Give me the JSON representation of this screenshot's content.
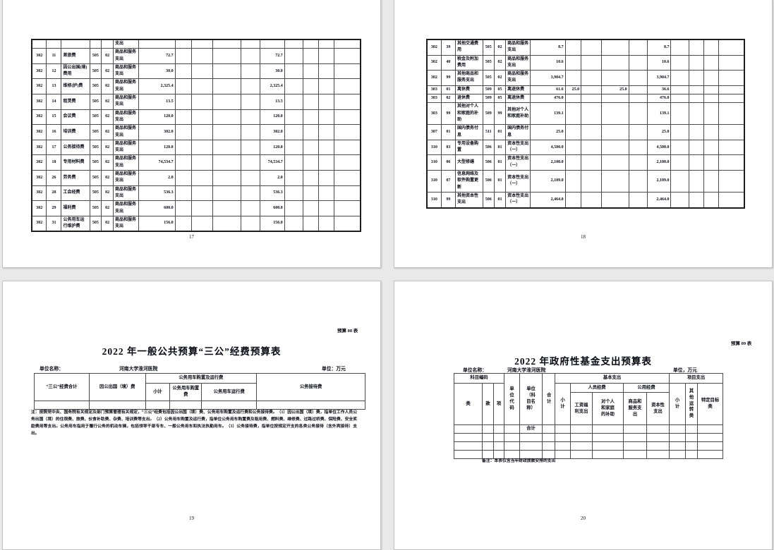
{
  "p17": {
    "page_number": "17",
    "rows": [
      [
        "",
        "",
        "",
        "",
        "",
        "支出",
        "",
        "",
        "",
        "",
        "",
        "",
        "",
        "",
        "",
        ""
      ],
      [
        "302",
        "11",
        "差旅费",
        "505",
        "02",
        "商品和服务支出",
        "72.7",
        "",
        "",
        "",
        "",
        "72.7",
        "",
        "",
        "",
        ""
      ],
      [
        "302",
        "12",
        "因公出国(境)费用",
        "505",
        "02",
        "商品和服务支出",
        "30.0",
        "",
        "",
        "",
        "",
        "30.0",
        "",
        "",
        "",
        ""
      ],
      [
        "302",
        "13",
        "维修(护)费",
        "505",
        "02",
        "商品和服务支出",
        "2,325.4",
        "",
        "",
        "",
        "",
        "2,325.4",
        "",
        "",
        "",
        ""
      ],
      [
        "302",
        "14",
        "租赁费",
        "505",
        "02",
        "商品和服务支出",
        "13.5",
        "",
        "",
        "",
        "",
        "13.5",
        "",
        "",
        "",
        ""
      ],
      [
        "302",
        "15",
        "会议费",
        "505",
        "02",
        "商品和服务支出",
        "120.0",
        "",
        "",
        "",
        "",
        "120.0",
        "",
        "",
        "",
        ""
      ],
      [
        "302",
        "16",
        "培训费",
        "505",
        "02",
        "商品和服务支出",
        "302.0",
        "",
        "",
        "",
        "",
        "302.0",
        "",
        "",
        "",
        ""
      ],
      [
        "302",
        "17",
        "公务接待费",
        "505",
        "02",
        "商品和服务支出",
        "120.0",
        "",
        "",
        "",
        "",
        "120.0",
        "",
        "",
        "",
        ""
      ],
      [
        "302",
        "18",
        "专用材料费",
        "505",
        "02",
        "商品和服务支出",
        "74,534.7",
        "",
        "",
        "",
        "",
        "74,534.7",
        "",
        "",
        "",
        ""
      ],
      [
        "302",
        "26",
        "劳务费",
        "505",
        "02",
        "商品和服务支出",
        "2.0",
        "",
        "",
        "",
        "",
        "2.0",
        "",
        "",
        "",
        ""
      ],
      [
        "302",
        "28",
        "工会经费",
        "505",
        "02",
        "商品和服务支出",
        "536.3",
        "",
        "",
        "",
        "",
        "536.3",
        "",
        "",
        "",
        ""
      ],
      [
        "302",
        "29",
        "福利费",
        "505",
        "02",
        "商品和服务支出",
        "600.0",
        "",
        "",
        "",
        "",
        "600.0",
        "",
        "",
        "",
        ""
      ],
      [
        "302",
        "31",
        "公务用车运行维护费",
        "505",
        "02",
        "商品和服务支出",
        "156.0",
        "",
        "",
        "",
        "",
        "156.0",
        "",
        "",
        "",
        ""
      ]
    ]
  },
  "p18": {
    "page_number": "18",
    "rows": [
      [
        "302",
        "39",
        "其他交通费用",
        "505",
        "02",
        "商品和服务支出",
        "8.7",
        "",
        "",
        "",
        "",
        "8.7",
        "",
        "",
        "",
        ""
      ],
      [
        "302",
        "40",
        "税金及附加费用",
        "505",
        "02",
        "商品和服务支出",
        "10.6",
        "",
        "",
        "",
        "",
        "10.6",
        "",
        "",
        "",
        ""
      ],
      [
        "302",
        "99",
        "其他商品和服务支出",
        "505",
        "02",
        "商品和服务支出",
        "3,904.7",
        "",
        "",
        "",
        "",
        "3,904.7",
        "",
        "",
        "",
        ""
      ],
      [
        "303",
        "01",
        "离休费",
        "509",
        "05",
        "离退休费",
        "61.6",
        "25.0",
        "",
        "25.0",
        "",
        "36.6",
        "",
        "",
        "",
        ""
      ],
      [
        "303",
        "02",
        "退休费",
        "509",
        "05",
        "离退休费",
        "476.0",
        "",
        "",
        "",
        "",
        "476.0",
        "",
        "",
        "",
        ""
      ],
      [
        "303",
        "99",
        "其他对个人和家庭的补助",
        "509",
        "99",
        "其他对个人和家庭补助",
        "139.1",
        "",
        "",
        "",
        "",
        "139.1",
        "",
        "",
        "",
        ""
      ],
      [
        "307",
        "01",
        "国内债务付息",
        "511",
        "01",
        "国内债务付息",
        "25.0",
        "",
        "",
        "",
        "",
        "25.0",
        "",
        "",
        "",
        ""
      ],
      [
        "310",
        "03",
        "专用设备购置",
        "506",
        "01",
        "资本性支出（一）",
        "4,500.0",
        "",
        "",
        "",
        "",
        "4,500.0",
        "",
        "",
        "",
        ""
      ],
      [
        "310",
        "06",
        "大型修缮",
        "506",
        "01",
        "资本性支出（一）",
        "2,100.0",
        "",
        "",
        "",
        "",
        "2,100.0",
        "",
        "",
        "",
        ""
      ],
      [
        "310",
        "07",
        "信息网络及软件购置更新",
        "506",
        "01",
        "资本性支出（一）",
        "2,109.0",
        "",
        "",
        "",
        "",
        "2,109.0",
        "",
        "",
        "",
        ""
      ],
      [
        "310",
        "99",
        "其他资本性支出",
        "506",
        "01",
        "资本性支出（一）",
        "2,464.0",
        "",
        "",
        "",
        "",
        "2,464.0",
        "",
        "",
        "",
        ""
      ]
    ]
  },
  "p19": {
    "table_tag": "预算 08 表",
    "title": "2022 年一般公共预算“三公”经费预算表",
    "unit_name_label": "单位名称：",
    "unit_name": "河南大学淮河医院",
    "unit_label": "单位：万元",
    "header": {
      "total": "“三公”经费合计",
      "abroad": "因公出国（境）费",
      "vehicle_group": "公务用车购置及运行费",
      "subtotal": "小计",
      "purchase": "公务用车购置费",
      "operation": "公务用车运行费",
      "reception": "公务接待费"
    },
    "note": "注：按照党中央、国务院有关规定及部门预算管理有关规定，“三公”经费包括因公出国（境）费、公务用车购置及运行费和公务接待费。（1）因公出国（境）费，指单位工作人员公务出国（境）的住宿费、旅费、伙食补助费、杂费、培训费等支出。（2）公务用车购置及运行费，指单位公务用车购置费及租用费、燃料费、维修费、过路过桥费、保险费、安全奖励费用等支出。公务用车指用于履行公务的机动车辆，包括领导干部专车、一般公务用车和执法执勤用车。（3）公务接待费，指单位按规定开支的各类公务接待（含外宾接待）支出。",
    "page_number": "19"
  },
  "p20": {
    "table_tag": "预算 09 表",
    "title": "2022 年政府性基金支出预算表",
    "unit_name_label": "单位名称：",
    "unit_name": "河南大学淮河医院",
    "unit_label": "单位，万元",
    "header": {
      "subject_code": "科目编码",
      "cls": "类",
      "section": "款",
      "item": "项",
      "unit_code": "单位代码",
      "unit_subject": "单位（科目名称）",
      "total": "合计",
      "basic_group": "基本支出",
      "basic_subtotal": "小计",
      "personnel_group": "人员经费",
      "salary": "工资福利支出",
      "family": "对个人和家庭的补助",
      "public_group": "公用经费",
      "goods": "商品和服务支出",
      "capital": "资本性支出",
      "project_group": "项目支出",
      "project_subtotal": "小计",
      "other_operation": "其他运转类",
      "specific_target": "特定目标类"
    },
    "total_row_label": "合计",
    "note": "备注：本表仅含当年财政拨款安排的支出",
    "page_number": "20"
  }
}
